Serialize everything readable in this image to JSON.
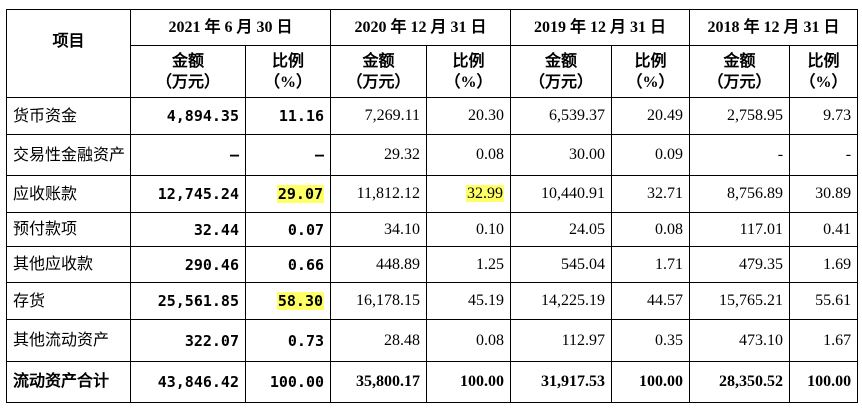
{
  "header": {
    "item": "项目",
    "periods": [
      "2021 年 6 月 30 日",
      "2020 年 12 月 31 日",
      "2019 年 12 月 31 日",
      "2018 年 12 月 31 日"
    ],
    "amount": "金额",
    "amount_unit": "（万元）",
    "ratio": "比例",
    "ratio_unit_first": "（%）",
    "ratio_unit": "（%）"
  },
  "rows": [
    {
      "label": "货币资金",
      "v": [
        "4,894.35",
        "11.16",
        "7,269.11",
        "20.30",
        "6,539.37",
        "20.49",
        "2,758.95",
        "9.73"
      ]
    },
    {
      "label": "交易性金融资产",
      "v": [
        "–",
        "–",
        "29.32",
        "0.08",
        "30.00",
        "0.09",
        "-",
        "-"
      ]
    },
    {
      "label": "应收账款",
      "v": [
        "12,745.24",
        "29.07",
        "11,812.12",
        "32.99",
        "10,440.91",
        "32.71",
        "8,756.89",
        "30.89"
      ]
    },
    {
      "label": "预付款项",
      "v": [
        "32.44",
        "0.07",
        "34.10",
        "0.10",
        "24.05",
        "0.08",
        "117.01",
        "0.41"
      ]
    },
    {
      "label": "其他应收款",
      "v": [
        "290.46",
        "0.66",
        "448.89",
        "1.25",
        "545.04",
        "1.71",
        "479.35",
        "1.69"
      ]
    },
    {
      "label": "存货",
      "v": [
        "25,561.85",
        "58.30",
        "16,178.15",
        "45.19",
        "14,225.19",
        "44.57",
        "15,765.21",
        "55.61"
      ]
    },
    {
      "label": "其他流动资产",
      "v": [
        "322.07",
        "0.73",
        "28.48",
        "0.08",
        "112.97",
        "0.35",
        "473.10",
        "1.67"
      ]
    },
    {
      "label": "流动资产合计",
      "v": [
        "43,846.42",
        "100.00",
        "35,800.17",
        "100.00",
        "31,917.53",
        "100.00",
        "28,350.52",
        "100.00"
      ]
    }
  ],
  "highlight_color": "#ffff66"
}
